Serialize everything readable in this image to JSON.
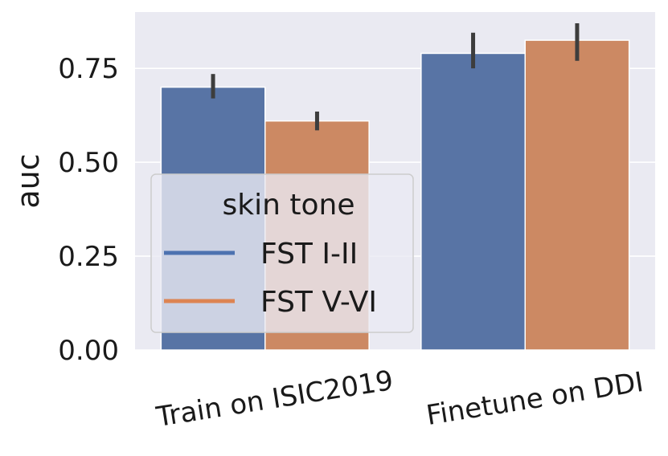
{
  "chart_data": {
    "type": "bar",
    "title": "",
    "xlabel": "",
    "ylabel": "auc",
    "ylim": [
      0,
      0.9
    ],
    "yticks": [
      0.0,
      0.25,
      0.5,
      0.75
    ],
    "ytick_labels": [
      "0.00",
      "0.25",
      "0.50",
      "0.75"
    ],
    "categories": [
      "Train on ISIC2019",
      "Finetune on DDI"
    ],
    "series": [
      {
        "name": "FST I-II",
        "color": "#5874a5",
        "line_color": "#4c72b0",
        "values": [
          0.7,
          0.79
        ],
        "err_low": [
          0.67,
          0.75
        ],
        "err_high": [
          0.735,
          0.845
        ]
      },
      {
        "name": "FST V-VI",
        "color": "#cc8963",
        "line_color": "#dd8452",
        "values": [
          0.61,
          0.825
        ],
        "err_low": [
          0.585,
          0.77
        ],
        "err_high": [
          0.635,
          0.87
        ]
      }
    ],
    "legend": {
      "title": "skin tone",
      "location": "lower-left"
    },
    "grid": true,
    "background": "#eaeaf2",
    "errorbar_color": "#3d3d3d"
  }
}
